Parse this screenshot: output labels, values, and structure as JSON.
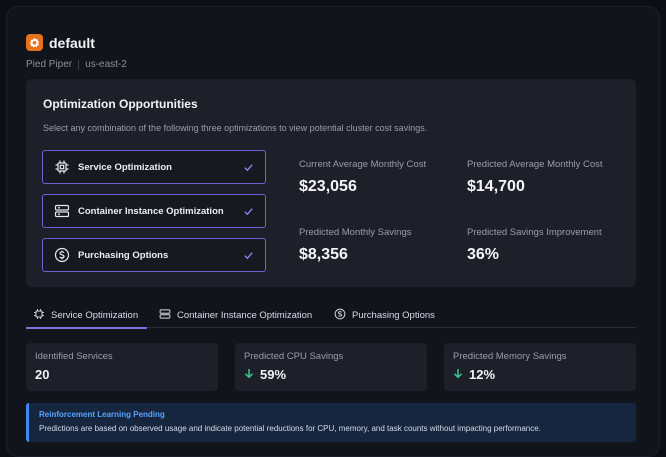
{
  "header": {
    "title": "default",
    "org": "Pied Piper",
    "region": "us-east-2"
  },
  "opportunities": {
    "title": "Optimization Opportunities",
    "description": "Select any combination of the following three optimizations to view potential cluster cost savings.",
    "options": [
      {
        "label": "Service Optimization",
        "icon": "chip-icon",
        "checked": true
      },
      {
        "label": "Container Instance Optimization",
        "icon": "server-icon",
        "checked": true
      },
      {
        "label": "Purchasing Options",
        "icon": "dollar-circle-icon",
        "checked": true
      }
    ],
    "stats": {
      "current_cost_label": "Current Average Monthly Cost",
      "current_cost_value": "$23,056",
      "predicted_cost_label": "Predicted Average Monthly Cost",
      "predicted_cost_value": "$14,700",
      "savings_label": "Predicted Monthly Savings",
      "savings_value": "$8,356",
      "improvement_label": "Predicted Savings Improvement",
      "improvement_value": "36%"
    }
  },
  "tabs": [
    {
      "label": "Service Optimization",
      "active": true
    },
    {
      "label": "Container Instance Optimization",
      "active": false
    },
    {
      "label": "Purchasing Options",
      "active": false
    }
  ],
  "metrics": {
    "services_label": "Identified Services",
    "services_value": "20",
    "cpu_label": "Predicted CPU Savings",
    "cpu_value": "59%",
    "memory_label": "Predicted Memory Savings",
    "memory_value": "12%"
  },
  "alert": {
    "title": "Reinforcement Learning Pending",
    "text": "Predictions are based on observed usage and indicate potential reductions for CPU, memory, and task counts without impacting performance."
  },
  "colors": {
    "accent": "#7d70e6",
    "brand": "#e8721c",
    "positive": "#3fc48a",
    "info": "#3d8bf0"
  }
}
